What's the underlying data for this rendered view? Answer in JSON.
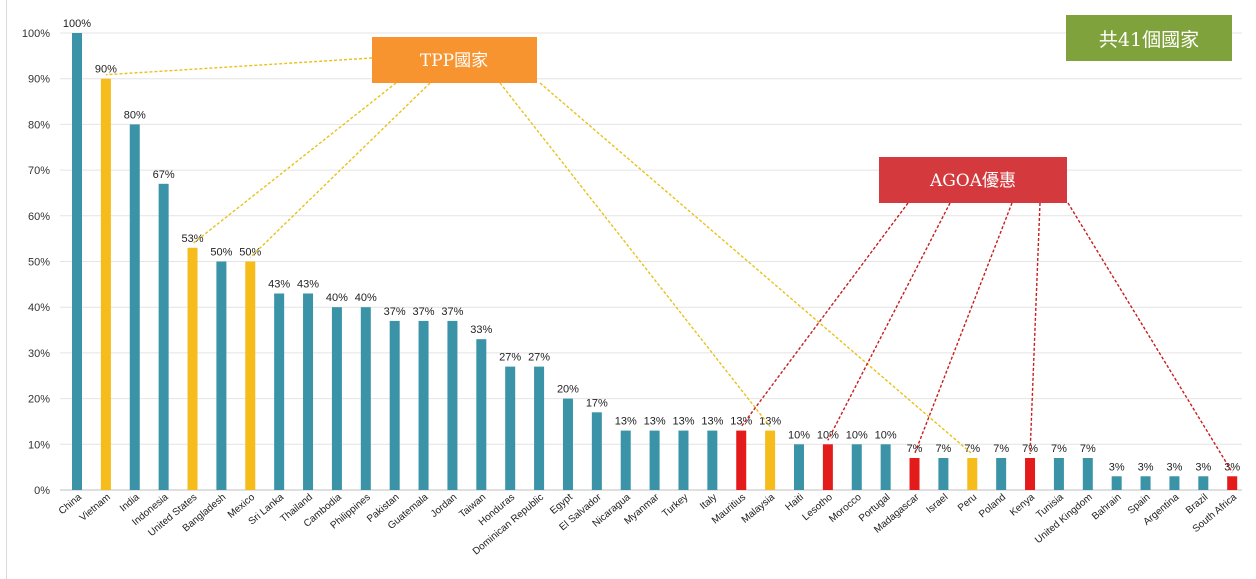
{
  "chart_data": {
    "type": "bar",
    "categories": [
      "China",
      "Vietnam",
      "India",
      "Indonesia",
      "United States",
      "Bangladesh",
      "Mexico",
      "Sri Lanka",
      "Thailand",
      "Cambodia",
      "Philippines",
      "Pakistan",
      "Guatemala",
      "Jordan",
      "Taiwan",
      "Honduras",
      "Dominican Republic",
      "Egypt",
      "El Salvador",
      "Nicaragua",
      "Myanmar",
      "Turkey",
      "Italy",
      "Mauritius",
      "Malaysia",
      "Haiti",
      "Lesotho",
      "Morocco",
      "Portugal",
      "Madagascar",
      "Israel",
      "Peru",
      "Poland",
      "Kenya",
      "Tunisia",
      "United Kingdom",
      "Bahrain",
      "Spain",
      "Argentina",
      "Brazil",
      "South Africa"
    ],
    "values": [
      100,
      90,
      80,
      67,
      53,
      50,
      50,
      43,
      43,
      40,
      40,
      37,
      37,
      37,
      33,
      27,
      27,
      20,
      17,
      13,
      13,
      13,
      13,
      13,
      13,
      10,
      10,
      10,
      10,
      7,
      7,
      7,
      7,
      7,
      7,
      7,
      3,
      3,
      3,
      3,
      3
    ],
    "value_labels": [
      "100%",
      "90%",
      "80%",
      "67%",
      "53%",
      "50%",
      "50%",
      "43%",
      "43%",
      "40%",
      "40%",
      "37%",
      "37%",
      "37%",
      "33%",
      "27%",
      "27%",
      "20%",
      "17%",
      "13%",
      "13%",
      "13%",
      "13%",
      "13%",
      "13%",
      "10%",
      "10%",
      "10%",
      "10%",
      "7%",
      "7%",
      "7%",
      "7%",
      "7%",
      "7%",
      "7%",
      "3%",
      "3%",
      "3%",
      "3%",
      "3%"
    ],
    "groups": [
      "base",
      "tpp",
      "base",
      "base",
      "tpp",
      "base",
      "tpp",
      "base",
      "base",
      "base",
      "base",
      "base",
      "base",
      "base",
      "base",
      "base",
      "base",
      "base",
      "base",
      "base",
      "base",
      "base",
      "base",
      "agoa",
      "tpp",
      "base",
      "agoa",
      "base",
      "base",
      "agoa",
      "base",
      "tpp",
      "base",
      "agoa",
      "base",
      "base",
      "base",
      "base",
      "base",
      "base",
      "agoa"
    ],
    "yticks": [
      "0%",
      "10%",
      "20%",
      "30%",
      "40%",
      "50%",
      "60%",
      "70%",
      "80%",
      "90%",
      "100%"
    ],
    "ylim": [
      0,
      100
    ],
    "grid": true,
    "colors": {
      "base": "#3a93a6",
      "tpp": "#f6bc1c",
      "agoa": "#e31b1b",
      "tpp_box": "#f7942f",
      "agoa_box": "#d43a3d",
      "total_box": "#7fa23c"
    },
    "annotations": {
      "tpp_label": "TPP國家",
      "agoa_label": "AGOA優惠",
      "total_label": "共41個國家"
    }
  }
}
